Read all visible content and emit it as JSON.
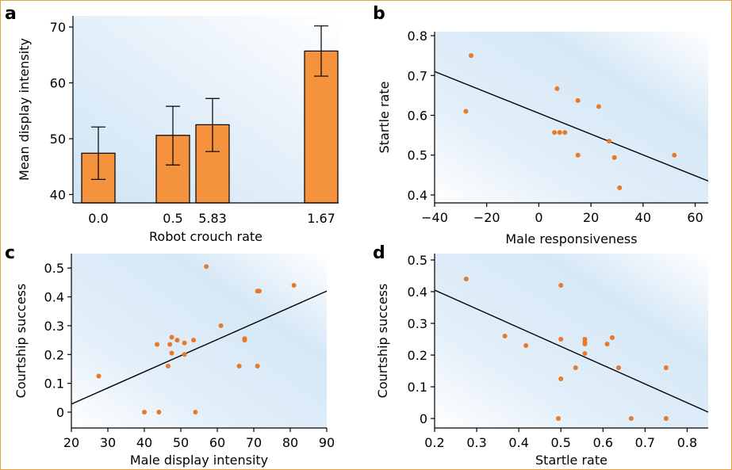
{
  "colors": {
    "frame": "#e8a040",
    "bar_fill": "#f5923e",
    "point": "#e8782a",
    "bg_light": "#ffffff",
    "bg_tint": "#d5e8f7"
  },
  "chart_data": [
    {
      "panel": "a",
      "type": "bar",
      "xlabel": "Robot crouch rate",
      "ylabel": "Mean display intensity",
      "ylim": [
        38.5,
        72
      ],
      "yticks": [
        40,
        50,
        60,
        70
      ],
      "categories": [
        "0.0",
        "0.5",
        "5.83",
        "1.67"
      ],
      "values": [
        47.4,
        50.6,
        52.5,
        65.7
      ],
      "error_low": [
        42.7,
        45.3,
        47.7,
        61.2
      ],
      "error_high": [
        52.1,
        55.8,
        57.2,
        70.2
      ],
      "grid": false
    },
    {
      "panel": "b",
      "type": "scatter",
      "xlabel": "Male responsiveness",
      "ylabel": "Startle rate",
      "xlim": [
        -40,
        65
      ],
      "ylim": [
        0.38,
        0.81
      ],
      "xticks": [
        -40,
        -20,
        0,
        20,
        40,
        60
      ],
      "xtick_labels": [
        "−40",
        "−20",
        "0",
        "20",
        "40",
        "60"
      ],
      "yticks": [
        0.4,
        0.5,
        0.6,
        0.7,
        0.8
      ],
      "ytick_labels": [
        "0.4",
        "0.5",
        "0.6",
        "0.7",
        "0.8"
      ],
      "x": [
        -26,
        -28,
        7,
        6,
        8,
        10,
        15,
        15,
        23,
        27,
        29,
        31,
        52
      ],
      "y": [
        0.75,
        0.61,
        0.667,
        0.557,
        0.557,
        0.557,
        0.637,
        0.5,
        0.622,
        0.535,
        0.494,
        0.418,
        0.5
      ],
      "trend": {
        "x": [
          -40,
          65
        ],
        "y": [
          0.71,
          0.435
        ]
      },
      "grid": false
    },
    {
      "panel": "c",
      "type": "scatter",
      "xlabel": "Male display intensity",
      "ylabel": "Courtship success",
      "xlim": [
        20,
        90
      ],
      "ylim": [
        -0.055,
        0.55
      ],
      "xticks": [
        20,
        30,
        40,
        50,
        60,
        70,
        80,
        90
      ],
      "xtick_labels": [
        "20",
        "30",
        "40",
        "50",
        "60",
        "70",
        "80",
        "90"
      ],
      "yticks": [
        0,
        0.1,
        0.2,
        0.3,
        0.4,
        0.5
      ],
      "ytick_labels": [
        "0",
        "0.1",
        "0.2",
        "0.3",
        "0.4",
        "0.5"
      ],
      "x": [
        27.5,
        40,
        44,
        43.5,
        46.5,
        47,
        47.5,
        47.5,
        49,
        51,
        51,
        53.5,
        54,
        57,
        61,
        66,
        67.5,
        71,
        71.5,
        81,
        67.5,
        71
      ],
      "y": [
        0.125,
        0,
        0,
        0.235,
        0.16,
        0.235,
        0.26,
        0.205,
        0.25,
        0.24,
        0.2,
        0.25,
        0,
        0.505,
        0.3,
        0.16,
        0.255,
        0.16,
        0.42,
        0.44,
        0.25,
        0.42
      ],
      "trend": {
        "x": [
          20,
          90
        ],
        "y": [
          0.028,
          0.42
        ]
      },
      "grid": false
    },
    {
      "panel": "d",
      "type": "scatter",
      "xlabel": "Startle rate",
      "ylabel": "Courtship success",
      "xlim": [
        0.2,
        0.85
      ],
      "ylim": [
        -0.03,
        0.52
      ],
      "xticks": [
        0.2,
        0.3,
        0.4,
        0.5,
        0.6,
        0.7,
        0.8
      ],
      "xtick_labels": [
        "0.2",
        "0.3",
        "0.4",
        "0.5",
        "0.6",
        "0.7",
        "0.8"
      ],
      "yticks": [
        0,
        0.1,
        0.2,
        0.3,
        0.4,
        0.5
      ],
      "ytick_labels": [
        "0",
        "0.1",
        "0.2",
        "0.3",
        "0.4",
        "0.5"
      ],
      "x": [
        0.275,
        0.367,
        0.417,
        0.494,
        0.5,
        0.5,
        0.5,
        0.535,
        0.557,
        0.557,
        0.557,
        0.557,
        0.61,
        0.622,
        0.637,
        0.667,
        0.75,
        0.75
      ],
      "y": [
        0.44,
        0.26,
        0.23,
        0,
        0.42,
        0.25,
        0.125,
        0.16,
        0.25,
        0.24,
        0.205,
        0.235,
        0.235,
        0.255,
        0.16,
        0,
        0.16,
        0
      ],
      "trend": {
        "x": [
          0.2,
          0.85
        ],
        "y": [
          0.405,
          0.02
        ]
      },
      "grid": false
    }
  ]
}
